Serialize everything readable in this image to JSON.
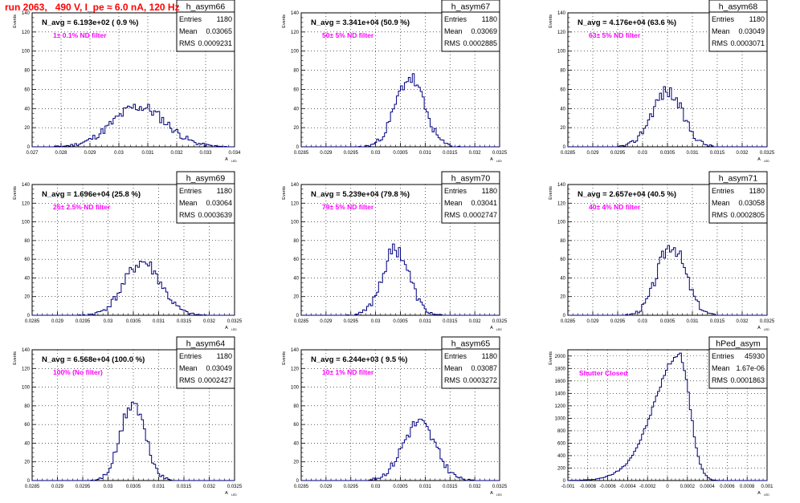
{
  "figure": {
    "title": "run 2063,   490 V, I_pe ≈ 6.0 nA, 120 Hz",
    "y_axis_label": "Events",
    "x_axis_label": "A",
    "x_axis_label_sub": "LED",
    "stats_labels": {
      "entries": "Entries",
      "mean": "Mean",
      "rms": "RMS"
    },
    "colors": {
      "title": "#ff0000",
      "histogram": "#000080",
      "annotation": "#ff00ff",
      "grid": "#000000"
    }
  },
  "chart_data": [
    {
      "type": "histogram",
      "name": "h_asym66",
      "navg_text": "N_avg = 6.193e+02 ( 0.9 %)",
      "annotation": "1± 0.1% ND filter",
      "entries": "1180",
      "mean": "0.03065",
      "rms": "0.0009231",
      "xlim": [
        0.027,
        0.034
      ],
      "ylim": [
        0,
        140
      ],
      "xticks": [
        0.027,
        0.028,
        0.029,
        0.03,
        0.031,
        0.032,
        0.033,
        0.034
      ],
      "xticklabels": [
        "0.027",
        "0.028",
        "0.029",
        "0.03",
        "0.031",
        "0.032",
        "0.033",
        "0.034"
      ],
      "yticks": [
        0,
        20,
        40,
        60,
        80,
        100,
        120,
        140
      ],
      "yticklabels": [
        "0",
        "20",
        "40",
        "60",
        "80",
        "100",
        "120",
        "140"
      ],
      "peak_x": 0.0307,
      "peak_y": 42,
      "sigma": 0.00092,
      "seed": 11
    },
    {
      "type": "histogram",
      "name": "h_asym67",
      "navg_text": "N_avg = 3.341e+04 (50.9 %)",
      "annotation": "50± 5% ND filter",
      "entries": "1180",
      "mean": "0.03069",
      "rms": "0.0002885",
      "xlim": [
        0.0285,
        0.0325
      ],
      "ylim": [
        0,
        140
      ],
      "xticks": [
        0.0285,
        0.029,
        0.0295,
        0.03,
        0.0305,
        0.031,
        0.0315,
        0.032,
        0.0325
      ],
      "xticklabels": [
        "0.0285",
        "0.029",
        "0.0295",
        "0.03",
        "0.0305",
        "0.031",
        "0.0315",
        "0.032",
        "0.0325"
      ],
      "yticks": [
        0,
        20,
        40,
        60,
        80,
        100,
        120,
        140
      ],
      "yticklabels": [
        "0",
        "20",
        "40",
        "60",
        "80",
        "100",
        "120",
        "140"
      ],
      "peak_x": 0.03069,
      "peak_y": 72,
      "sigma": 0.00029,
      "seed": 23
    },
    {
      "type": "histogram",
      "name": "h_asym68",
      "navg_text": "N_avg = 4.176e+04 (63.6 %)",
      "annotation": "63± 5% ND filter",
      "entries": "1180",
      "mean": "0.03049",
      "rms": "0.0003071",
      "xlim": [
        0.0285,
        0.0325
      ],
      "ylim": [
        0,
        140
      ],
      "xticks": [
        0.0285,
        0.029,
        0.0295,
        0.03,
        0.0305,
        0.031,
        0.0315,
        0.032,
        0.0325
      ],
      "xticklabels": [
        "0.0285",
        "0.029",
        "0.0295",
        "0.03",
        "0.0305",
        "0.031",
        "0.0315",
        "0.032",
        "0.0325"
      ],
      "yticks": [
        0,
        20,
        40,
        60,
        80,
        100,
        120,
        140
      ],
      "yticklabels": [
        "0",
        "20",
        "40",
        "60",
        "80",
        "100",
        "120",
        "140"
      ],
      "peak_x": 0.03049,
      "peak_y": 58,
      "sigma": 0.00031,
      "seed": 37
    },
    {
      "type": "histogram",
      "name": "h_asym69",
      "navg_text": "N_avg = 1.696e+04 (25.8 %)",
      "annotation": "25± 2.5% ND filter",
      "entries": "1180",
      "mean": "0.03064",
      "rms": "0.0003639",
      "xlim": [
        0.0285,
        0.0325
      ],
      "ylim": [
        0,
        140
      ],
      "xticks": [
        0.0285,
        0.029,
        0.0295,
        0.03,
        0.0305,
        0.031,
        0.0315,
        0.032,
        0.0325
      ],
      "xticklabels": [
        "0.0285",
        "0.029",
        "0.0295",
        "0.03",
        "0.0305",
        "0.031",
        "0.0315",
        "0.032",
        "0.0325"
      ],
      "yticks": [
        0,
        20,
        40,
        60,
        80,
        100,
        120,
        140
      ],
      "yticklabels": [
        "0",
        "20",
        "40",
        "60",
        "80",
        "100",
        "120",
        "140"
      ],
      "peak_x": 0.03068,
      "peak_y": 57,
      "sigma": 0.00036,
      "seed": 41
    },
    {
      "type": "histogram",
      "name": "h_asym70",
      "navg_text": "N_avg = 5.239e+04 (79.8 %)",
      "annotation": "79± 5% ND filter",
      "entries": "1180",
      "mean": "0.03041",
      "rms": "0.0002747",
      "xlim": [
        0.0285,
        0.0325
      ],
      "ylim": [
        0,
        140
      ],
      "xticks": [
        0.0285,
        0.029,
        0.0295,
        0.03,
        0.0305,
        0.031,
        0.0315,
        0.032,
        0.0325
      ],
      "xticklabels": [
        "0.0285",
        "0.029",
        "0.0295",
        "0.03",
        "0.0305",
        "0.031",
        "0.0315",
        "0.032",
        "0.0325"
      ],
      "yticks": [
        0,
        20,
        40,
        60,
        80,
        100,
        120,
        140
      ],
      "yticklabels": [
        "0",
        "20",
        "40",
        "60",
        "80",
        "100",
        "120",
        "140"
      ],
      "peak_x": 0.03041,
      "peak_y": 71,
      "sigma": 0.00027,
      "seed": 53
    },
    {
      "type": "histogram",
      "name": "h_asym71",
      "navg_text": "N_avg = 2.657e+04 (40.5 %)",
      "annotation": "40± 4% ND filter",
      "entries": "1180",
      "mean": "0.03058",
      "rms": "0.0002805",
      "xlim": [
        0.0285,
        0.0325
      ],
      "ylim": [
        0,
        140
      ],
      "xticks": [
        0.0285,
        0.029,
        0.0295,
        0.03,
        0.0305,
        0.031,
        0.0315,
        0.032,
        0.0325
      ],
      "xticklabels": [
        "0.0285",
        "0.029",
        "0.0295",
        "0.03",
        "0.0305",
        "0.031",
        "0.0315",
        "0.032",
        "0.0325"
      ],
      "yticks": [
        0,
        20,
        40,
        60,
        80,
        100,
        120,
        140
      ],
      "yticklabels": [
        "0",
        "20",
        "40",
        "60",
        "80",
        "100",
        "120",
        "140"
      ],
      "peak_x": 0.03058,
      "peak_y": 76,
      "sigma": 0.00028,
      "seed": 67
    },
    {
      "type": "histogram",
      "name": "h_asym64",
      "navg_text": "N_avg = 6.568e+04 (100.0 %)",
      "annotation": "100% (No filter)",
      "entries": "1180",
      "mean": "0.03049",
      "rms": "0.0002427",
      "xlim": [
        0.0285,
        0.0325
      ],
      "ylim": [
        0,
        140
      ],
      "xticks": [
        0.0285,
        0.029,
        0.0295,
        0.03,
        0.0305,
        0.031,
        0.0315,
        0.032,
        0.0325
      ],
      "xticklabels": [
        "0.0285",
        "0.029",
        "0.0295",
        "0.03",
        "0.0305",
        "0.031",
        "0.0315",
        "0.032",
        "0.0325"
      ],
      "yticks": [
        0,
        20,
        40,
        60,
        80,
        100,
        120,
        140
      ],
      "yticklabels": [
        "0",
        "20",
        "40",
        "60",
        "80",
        "100",
        "120",
        "140"
      ],
      "peak_x": 0.03049,
      "peak_y": 83,
      "sigma": 0.00024,
      "seed": 71
    },
    {
      "type": "histogram",
      "name": "h_asym65",
      "navg_text": "N_avg = 6.244e+03 ( 9.5 %)",
      "annotation": "10± 1% ND filter",
      "entries": "1180",
      "mean": "0.03087",
      "rms": "0.0003272",
      "xlim": [
        0.0285,
        0.0325
      ],
      "ylim": [
        0,
        140
      ],
      "xticks": [
        0.0285,
        0.029,
        0.0295,
        0.03,
        0.0305,
        0.031,
        0.0315,
        0.032,
        0.0325
      ],
      "xticklabels": [
        "0.0285",
        "0.029",
        "0.0295",
        "0.03",
        "0.0305",
        "0.031",
        "0.0315",
        "0.032",
        "0.0325"
      ],
      "yticks": [
        0,
        20,
        40,
        60,
        80,
        100,
        120,
        140
      ],
      "yticklabels": [
        "0",
        "20",
        "40",
        "60",
        "80",
        "100",
        "120",
        "140"
      ],
      "peak_x": 0.03087,
      "peak_y": 62,
      "sigma": 0.00033,
      "seed": 83
    },
    {
      "type": "histogram",
      "name": "hPed_asym",
      "navg_text": "",
      "annotation": "Shutter Closed",
      "entries": "45930",
      "mean": "1.67e-06",
      "rms": "0.0001863",
      "xlim": [
        -0.001,
        0.001
      ],
      "ylim": [
        0,
        2100
      ],
      "xticks": [
        -0.001,
        -0.0008,
        -0.0006,
        -0.0004,
        -0.0002,
        0,
        0.0002,
        0.0004,
        0.0006,
        0.0008,
        0.001
      ],
      "xticklabels": [
        "-0.001",
        "-0.0008",
        "-0.0006",
        "-0.0004",
        "-0.0002",
        "0",
        "0.0002",
        "0.0004",
        "0.0006",
        "0.0008",
        "0.001"
      ],
      "yticks": [
        0,
        200,
        400,
        600,
        800,
        1000,
        1200,
        1400,
        1600,
        1800,
        2000
      ],
      "yticklabels": [
        "0",
        "200",
        "400",
        "600",
        "800",
        "1000",
        "1200",
        "1400",
        "1600",
        "1800",
        "2000"
      ],
      "peak_x": 0.00012,
      "peak_y": 2020,
      "sigma": 0.00019,
      "seed": 97,
      "skew": true
    }
  ]
}
